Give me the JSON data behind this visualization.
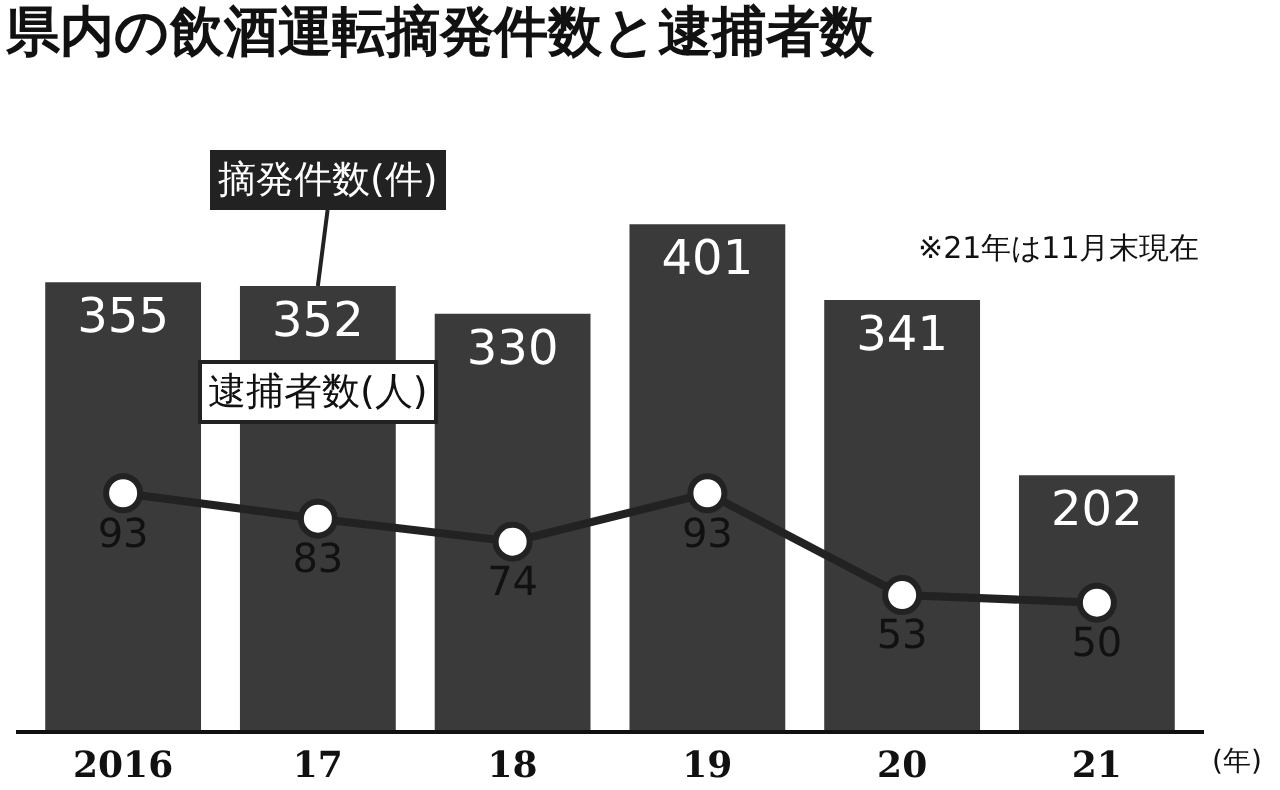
{
  "chart_data": {
    "type": "bar",
    "title": "県内の飲酒運転摘発件数と逮捕者数",
    "xlabel": "(年)",
    "annotations": [
      "※21年は11月末現在"
    ],
    "categories": [
      "2016",
      "17",
      "18",
      "19",
      "20",
      "21"
    ],
    "series": [
      {
        "name": "摘発件数(件)",
        "color": "#3a3a3a",
        "values": [
          355,
          352,
          330,
          401,
          341,
          202
        ]
      },
      {
        "name": "逮捕者数(人)",
        "type": "line",
        "axis": "y2",
        "color": "#222222",
        "values": [
          93,
          83,
          74,
          93,
          53,
          50
        ]
      }
    ],
    "tick_labels": "x",
    "data_labels": true,
    "grid": false,
    "marker": "circle",
    "line_style": "solid"
  }
}
